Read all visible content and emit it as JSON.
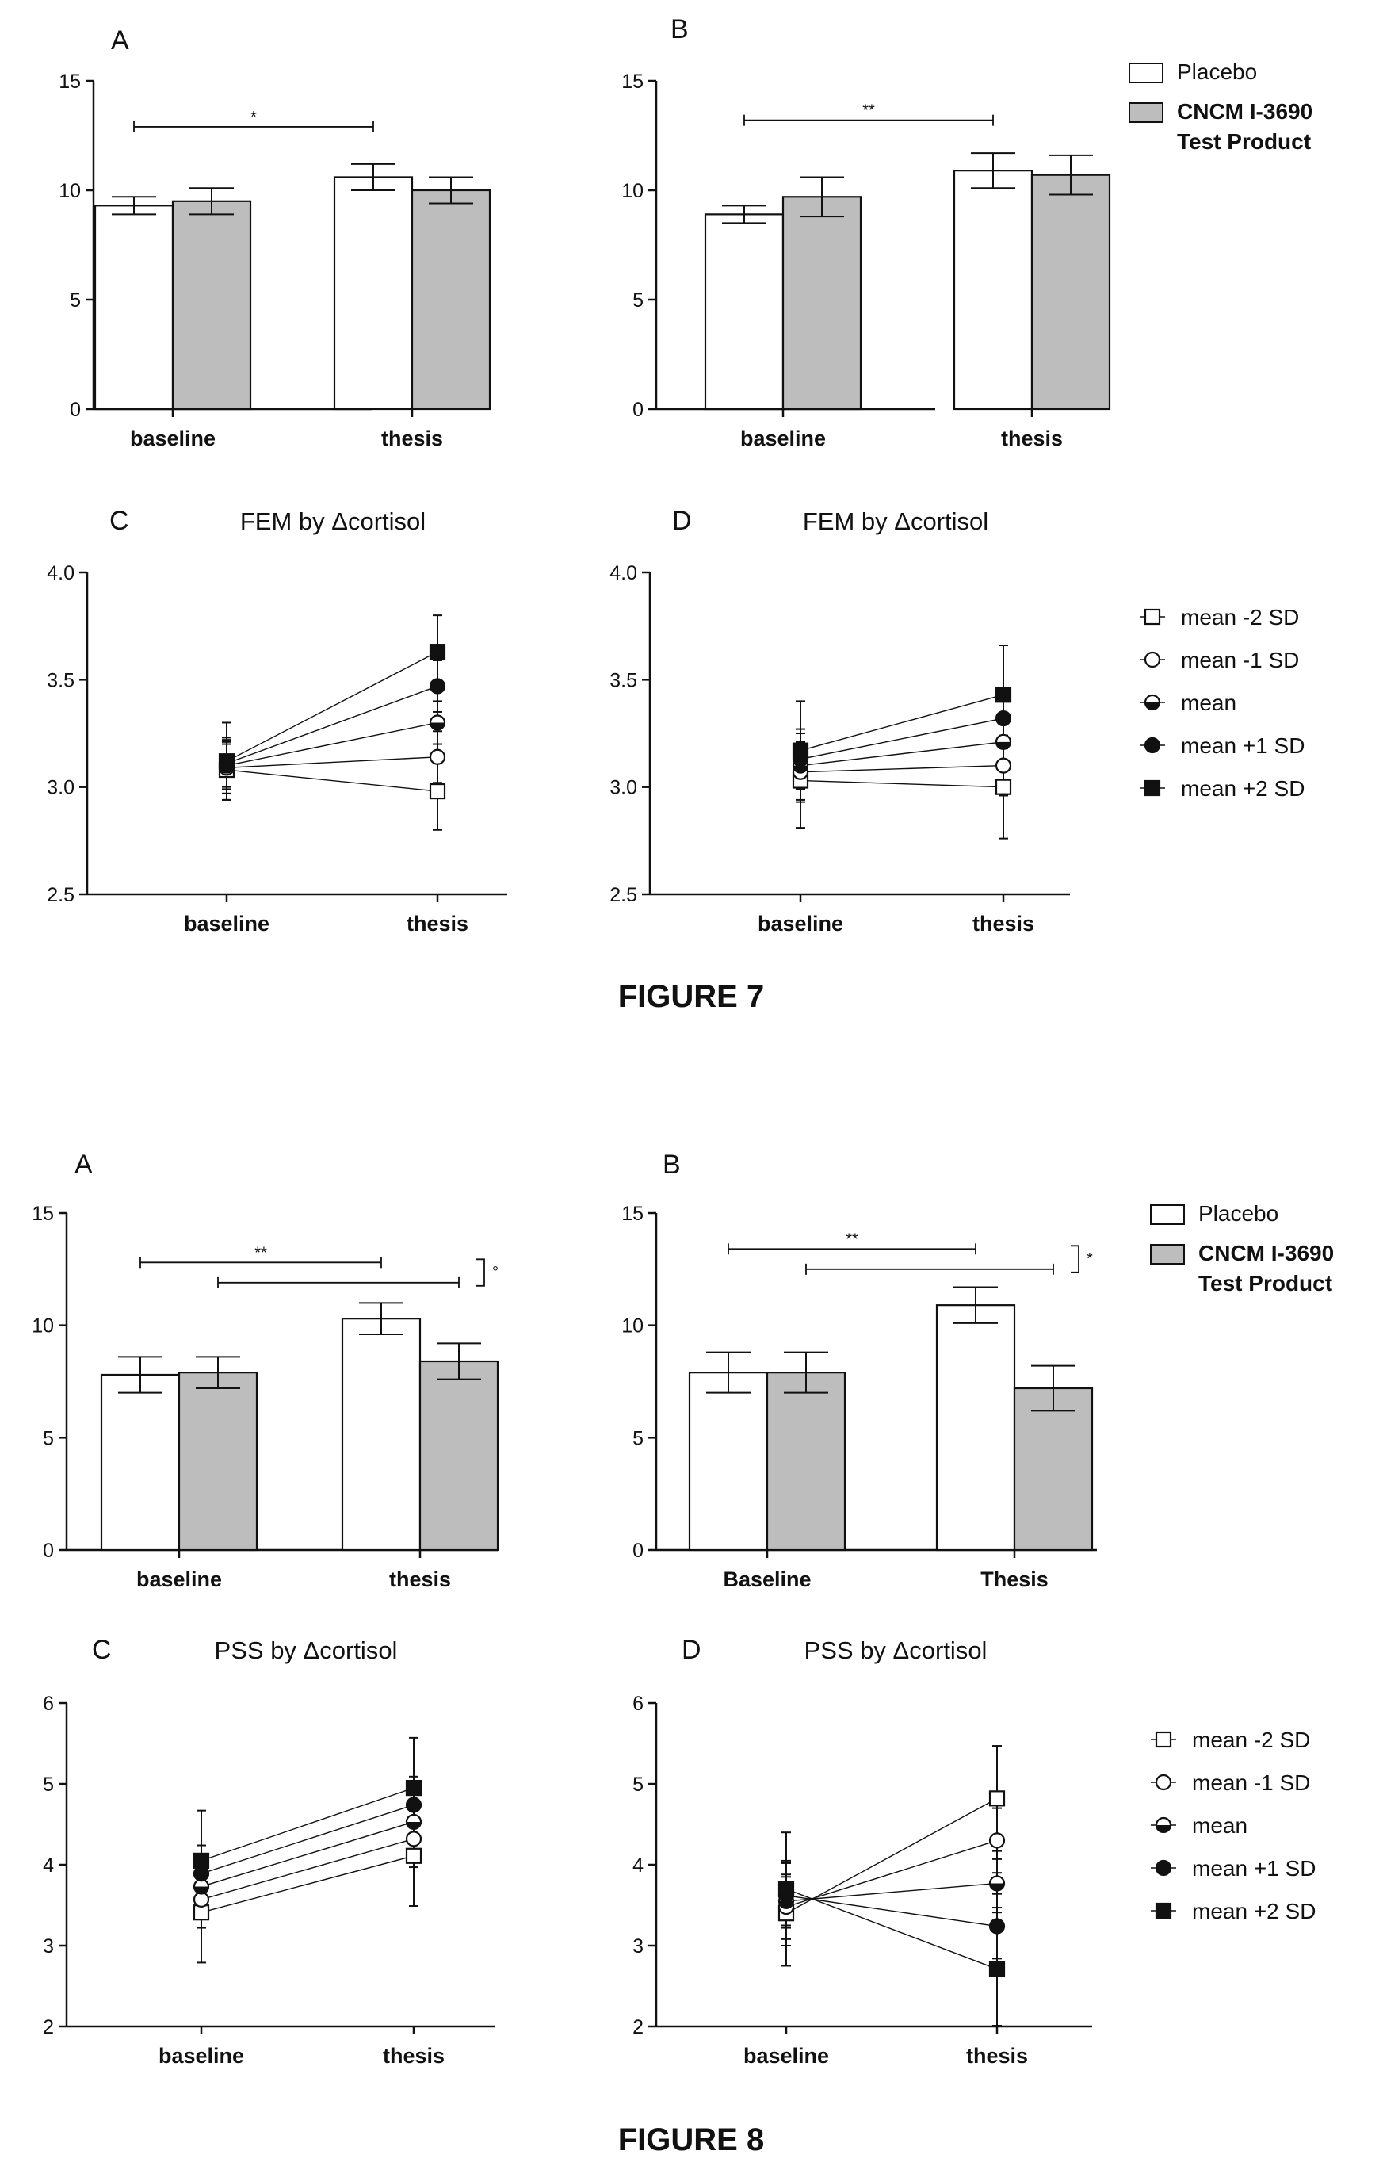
{
  "captions": {
    "figure7": "FIGURE 7",
    "figure8": "FIGURE 8"
  },
  "legends": {
    "bar": {
      "items": [
        {
          "label": "Placebo",
          "color": "#ffffff"
        },
        {
          "label": "CNCM I-3690",
          "label2": "Test Product",
          "color": "#bdbdbd"
        }
      ]
    },
    "line": {
      "items": [
        {
          "label": "mean -2 SD",
          "marker": "square-open"
        },
        {
          "label": "mean -1 SD",
          "marker": "circle-open"
        },
        {
          "label": "mean",
          "marker": "circle-half"
        },
        {
          "label": "mean +1 SD",
          "marker": "circle-filled"
        },
        {
          "label": "mean +2 SD",
          "marker": "square-filled"
        }
      ]
    }
  },
  "colors": {
    "placebo": "#ffffff",
    "test_product": "#bdbdbd",
    "ink": "#111111"
  },
  "chart_data": [
    {
      "id": "fig7A",
      "type": "bar",
      "letter": "A",
      "title": "",
      "categories": [
        "baseline",
        "thesis"
      ],
      "ylim": [
        0,
        15
      ],
      "yticks": [
        0,
        5,
        10,
        15
      ],
      "series": [
        {
          "name": "Placebo",
          "values": [
            9.3,
            10.6
          ],
          "err": [
            0.4,
            0.6
          ]
        },
        {
          "name": "CNCM I-3690 Test Product",
          "values": [
            9.5,
            10.0
          ],
          "err": [
            0.6,
            0.6
          ]
        }
      ],
      "significance": [
        {
          "label": "*",
          "y": 12.9
        }
      ]
    },
    {
      "id": "fig7B",
      "type": "bar",
      "letter": "B",
      "title": "",
      "categories": [
        "baseline",
        "thesis"
      ],
      "ylim": [
        0,
        15
      ],
      "yticks": [
        0,
        5,
        10,
        15
      ],
      "series": [
        {
          "name": "Placebo",
          "values": [
            8.9,
            10.9
          ],
          "err": [
            0.4,
            0.8
          ]
        },
        {
          "name": "CNCM I-3690 Test Product",
          "values": [
            9.7,
            10.7
          ],
          "err": [
            0.9,
            0.9
          ]
        }
      ],
      "significance": [
        {
          "label": "**",
          "y": 13.2
        }
      ]
    },
    {
      "id": "fig7C",
      "type": "line",
      "letter": "C",
      "title": "FEM by Δcortisol",
      "categories": [
        "baseline",
        "thesis"
      ],
      "ylim": [
        2.5,
        4.0
      ],
      "yticks": [
        2.5,
        3.0,
        3.5,
        4.0
      ],
      "tick_decimals": 1,
      "series": [
        {
          "name": "mean -2 SD",
          "values": [
            3.08,
            2.98
          ],
          "err": [
            0.14,
            0.18
          ]
        },
        {
          "name": "mean -1 SD",
          "values": [
            3.09,
            3.14
          ],
          "err": [
            0.12,
            0.12
          ]
        },
        {
          "name": "mean",
          "values": [
            3.1,
            3.3
          ],
          "err": [
            0.1,
            0.1
          ]
        },
        {
          "name": "mean +1 SD",
          "values": [
            3.11,
            3.47
          ],
          "err": [
            0.12,
            0.12
          ]
        },
        {
          "name": "mean +2 SD",
          "values": [
            3.12,
            3.63
          ],
          "err": [
            0.18,
            0.17
          ]
        }
      ]
    },
    {
      "id": "fig7D",
      "type": "line",
      "letter": "D",
      "title": "FEM by Δcortisol",
      "categories": [
        "baseline",
        "thesis"
      ],
      "ylim": [
        2.5,
        4.0
      ],
      "yticks": [
        2.5,
        3.0,
        3.5,
        4.0
      ],
      "tick_decimals": 1,
      "series": [
        {
          "name": "mean -2 SD",
          "values": [
            3.03,
            3.0
          ],
          "err": [
            0.22,
            0.24
          ]
        },
        {
          "name": "mean -1 SD",
          "values": [
            3.07,
            3.1
          ],
          "err": [
            0.14,
            0.14
          ]
        },
        {
          "name": "mean",
          "values": [
            3.1,
            3.21
          ],
          "err": [
            0.1,
            0.1
          ]
        },
        {
          "name": "mean +1 SD",
          "values": [
            3.13,
            3.32
          ],
          "err": [
            0.14,
            0.14
          ]
        },
        {
          "name": "mean +2 SD",
          "values": [
            3.17,
            3.43
          ],
          "err": [
            0.23,
            0.23
          ]
        }
      ]
    },
    {
      "id": "fig8A",
      "type": "bar",
      "letter": "A",
      "title": "",
      "categories": [
        "baseline",
        "thesis"
      ],
      "ylim": [
        0,
        15
      ],
      "yticks": [
        0,
        5,
        10,
        15
      ],
      "series": [
        {
          "name": "Placebo",
          "values": [
            7.8,
            10.3
          ],
          "err": [
            0.8,
            0.7
          ]
        },
        {
          "name": "CNCM I-3690 Test Product",
          "values": [
            7.9,
            8.4
          ],
          "err": [
            0.7,
            0.8
          ]
        }
      ],
      "significance": [
        {
          "label": "**",
          "y": 12.8
        },
        {
          "label": "",
          "y": 11.9
        }
      ],
      "side_mark": "°"
    },
    {
      "id": "fig8B",
      "type": "bar",
      "letter": "B",
      "title": "",
      "categories": [
        "Baseline",
        "Thesis"
      ],
      "ylim": [
        0,
        15
      ],
      "yticks": [
        0,
        5,
        10,
        15
      ],
      "series": [
        {
          "name": "Placebo",
          "values": [
            7.9,
            10.9
          ],
          "err": [
            0.9,
            0.8
          ]
        },
        {
          "name": "CNCM I-3690 Test Product",
          "values": [
            7.9,
            7.2
          ],
          "err": [
            0.9,
            1.0
          ]
        }
      ],
      "significance": [
        {
          "label": "**",
          "y": 13.4
        },
        {
          "label": "",
          "y": 12.5
        }
      ],
      "side_mark": "*"
    },
    {
      "id": "fig8C",
      "type": "line",
      "letter": "C",
      "title": "PSS by Δcortisol",
      "categories": [
        "baseline",
        "thesis"
      ],
      "ylim": [
        2,
        6
      ],
      "yticks": [
        2,
        3,
        4,
        5,
        6
      ],
      "tick_decimals": 0,
      "series": [
        {
          "name": "mean -2 SD",
          "values": [
            3.41,
            4.11
          ],
          "err": [
            0.62,
            0.62
          ]
        },
        {
          "name": "mean -1 SD",
          "values": [
            3.57,
            4.32
          ],
          "err": [
            0.35,
            0.35
          ]
        },
        {
          "name": "mean",
          "values": [
            3.73,
            4.53
          ],
          "err": [
            0.25,
            0.25
          ]
        },
        {
          "name": "mean +1 SD",
          "values": [
            3.89,
            4.74
          ],
          "err": [
            0.35,
            0.35
          ]
        },
        {
          "name": "mean +2 SD",
          "values": [
            4.05,
            4.95
          ],
          "err": [
            0.62,
            0.62
          ]
        }
      ]
    },
    {
      "id": "fig8D",
      "type": "line",
      "letter": "D",
      "title": "PSS by Δcortisol",
      "categories": [
        "baseline",
        "thesis"
      ],
      "ylim": [
        2,
        6
      ],
      "yticks": [
        2,
        3,
        4,
        5,
        6
      ],
      "tick_decimals": 0,
      "series": [
        {
          "name": "mean -2 SD",
          "values": [
            3.4,
            4.82
          ],
          "err": [
            0.65,
            0.65
          ]
        },
        {
          "name": "mean -1 SD",
          "values": [
            3.48,
            4.3
          ],
          "err": [
            0.4,
            0.4
          ]
        },
        {
          "name": "mean",
          "values": [
            3.55,
            3.77
          ],
          "err": [
            0.3,
            0.3
          ]
        },
        {
          "name": "mean +1 SD",
          "values": [
            3.62,
            3.24
          ],
          "err": [
            0.4,
            0.4
          ]
        },
        {
          "name": "mean +2 SD",
          "values": [
            3.7,
            2.71
          ],
          "err": [
            0.7,
            0.7
          ]
        }
      ]
    }
  ]
}
